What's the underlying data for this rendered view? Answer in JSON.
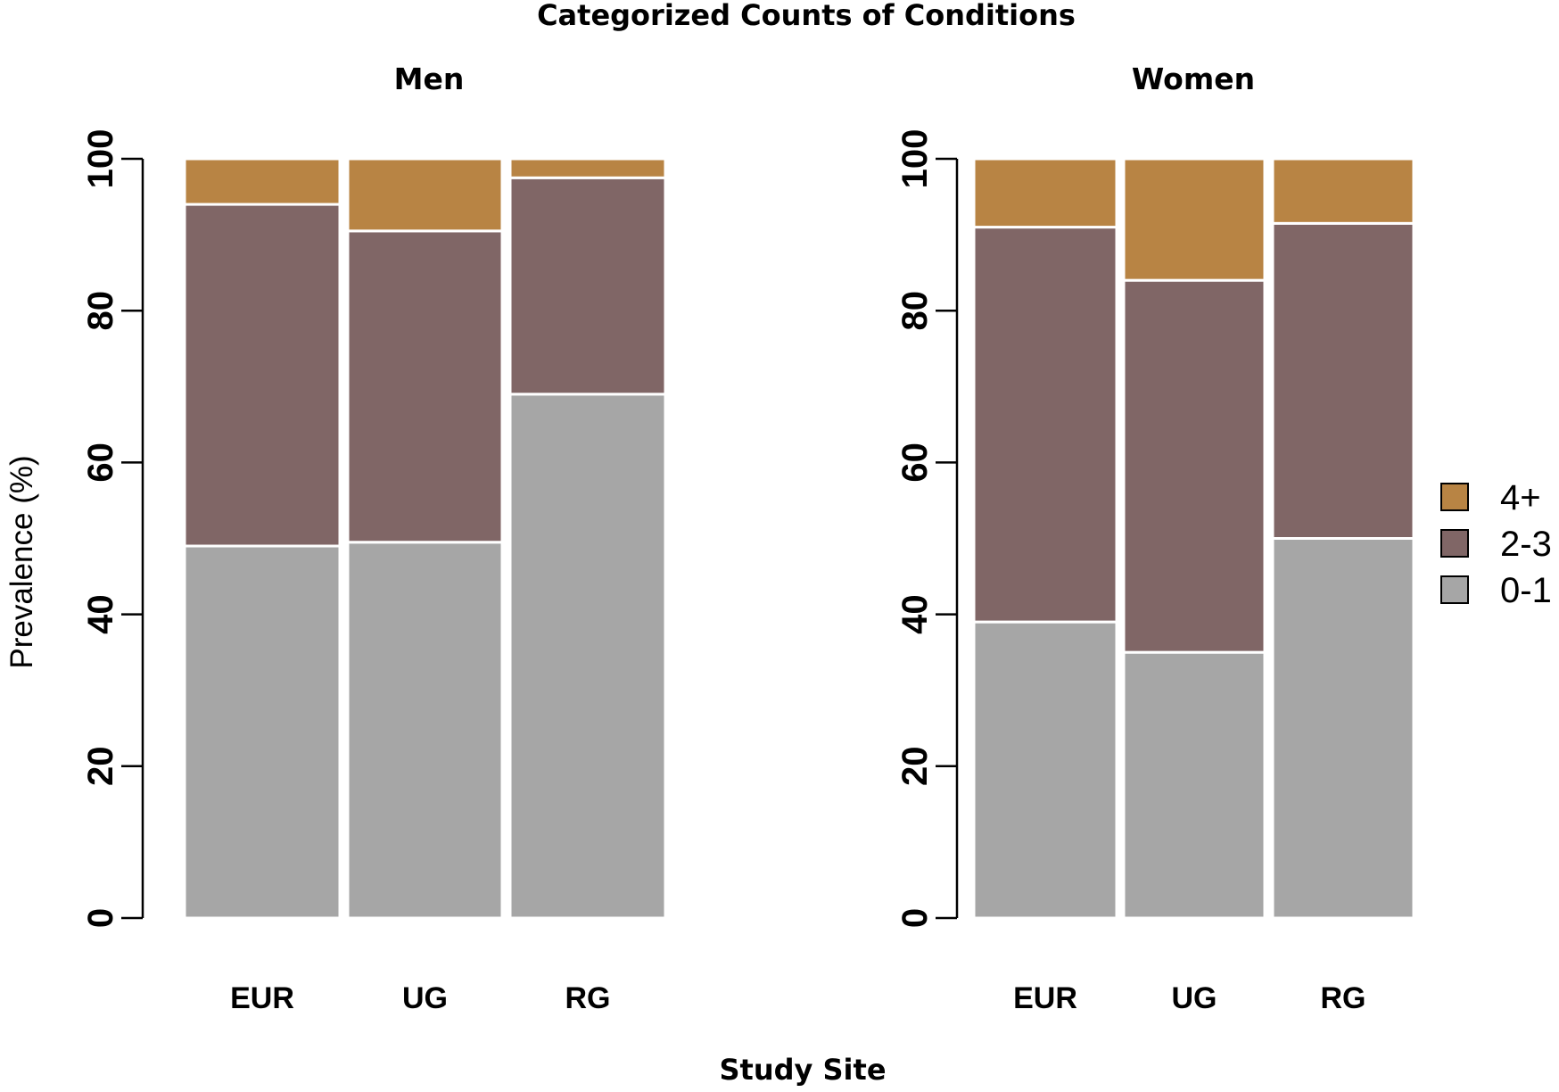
{
  "chart_data": {
    "type": "bar",
    "stacked": true,
    "title": "Categorized Counts of Conditions",
    "xlabel": "Study Site",
    "ylabel": "Prevalence (%)",
    "ylim": [
      0,
      100
    ],
    "yticks": [
      0,
      20,
      40,
      60,
      80,
      100
    ],
    "categories": [
      "EUR",
      "UG",
      "RG"
    ],
    "legend": {
      "placement": "right",
      "items": [
        {
          "label": "4+",
          "color": "#B88444"
        },
        {
          "label": "2-3",
          "color": "#806666"
        },
        {
          "label": "0-1",
          "color": "#A6A6A6"
        }
      ]
    },
    "panels": [
      {
        "title": "Men",
        "series": [
          {
            "name": "0-1",
            "color": "#A6A6A6",
            "values": [
              49.0,
              49.5,
              69.0
            ]
          },
          {
            "name": "2-3",
            "color": "#806666",
            "values": [
              45.0,
              41.0,
              28.5
            ]
          },
          {
            "name": "4+",
            "color": "#B88444",
            "values": [
              6.0,
              9.5,
              2.5
            ]
          }
        ]
      },
      {
        "title": "Women",
        "series": [
          {
            "name": "0-1",
            "color": "#A6A6A6",
            "values": [
              39.0,
              35.0,
              50.0
            ]
          },
          {
            "name": "2-3",
            "color": "#806666",
            "values": [
              52.0,
              49.0,
              41.5
            ]
          },
          {
            "name": "4+",
            "color": "#B88444",
            "values": [
              9.0,
              16.0,
              8.5
            ]
          }
        ]
      }
    ]
  }
}
